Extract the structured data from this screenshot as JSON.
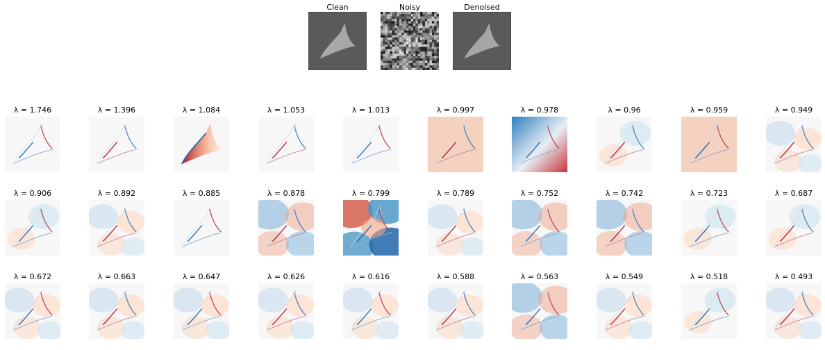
{
  "top_panels": [
    {
      "title": "Clean",
      "icon": "clean-shape-image",
      "background": "#5a5a5a",
      "shape": "#a8a8a8"
    },
    {
      "title": "Noisy",
      "icon": "noisy-shape-image",
      "background": "#5a5a5a",
      "shape": "#c8c8c8"
    },
    {
      "title": "Denoised",
      "icon": "denoised-shape-image",
      "background": "#5a5a5a",
      "shape": "#a6a6a6"
    }
  ],
  "eigen_rows": [
    [
      {
        "label": "λ = 1.746",
        "pattern": "flat-blue-edge"
      },
      {
        "label": "λ = 1.396",
        "pattern": "flat-red-edge"
      },
      {
        "label": "λ = 1.084",
        "pattern": "red-shape"
      },
      {
        "label": "λ = 1.053",
        "pattern": "flat-blue-edge"
      },
      {
        "label": "λ = 1.013",
        "pattern": "flat-blue-edge"
      },
      {
        "label": "λ = 0.997",
        "pattern": "red-field"
      },
      {
        "label": "λ = 0.978",
        "pattern": "blue-red-split"
      },
      {
        "label": "λ = 0.96",
        "pattern": "mixed-edges"
      },
      {
        "label": "λ = 0.959",
        "pattern": "red-field"
      },
      {
        "label": "λ = 0.949",
        "pattern": "pale-mixed"
      }
    ],
    [
      {
        "label": "λ = 0.906",
        "pattern": "mixed-edges"
      },
      {
        "label": "λ = 0.892",
        "pattern": "pale-mixed"
      },
      {
        "label": "λ = 0.885",
        "pattern": "flat-blue-edge"
      },
      {
        "label": "λ = 0.878",
        "pattern": "quad-lobes"
      },
      {
        "label": "λ = 0.799",
        "pattern": "strong-lobes"
      },
      {
        "label": "λ = 0.789",
        "pattern": "pale-mixed"
      },
      {
        "label": "λ = 0.752",
        "pattern": "quad-lobes"
      },
      {
        "label": "λ = 0.742",
        "pattern": "quad-lobes"
      },
      {
        "label": "λ = 0.723",
        "pattern": "mixed-edges"
      },
      {
        "label": "λ = 0.687",
        "pattern": "mixed-edges"
      }
    ],
    [
      {
        "label": "λ = 0.672",
        "pattern": "pale-mixed"
      },
      {
        "label": "λ = 0.663",
        "pattern": "pale-mixed"
      },
      {
        "label": "λ = 0.647",
        "pattern": "pale-mixed"
      },
      {
        "label": "λ = 0.626",
        "pattern": "pale-mixed"
      },
      {
        "label": "λ = 0.616",
        "pattern": "pale-mixed"
      },
      {
        "label": "λ = 0.588",
        "pattern": "pale-mixed"
      },
      {
        "label": "λ = 0.563",
        "pattern": "quad-lobes"
      },
      {
        "label": "λ = 0.549",
        "pattern": "pale-mixed"
      },
      {
        "label": "λ = 0.518",
        "pattern": "mixed-edges"
      },
      {
        "label": "λ = 0.493",
        "pattern": "pale-mixed"
      }
    ]
  ],
  "colormap": {
    "negative": "#2166ac",
    "zero": "#f7f7f7",
    "positive": "#b2182b"
  }
}
